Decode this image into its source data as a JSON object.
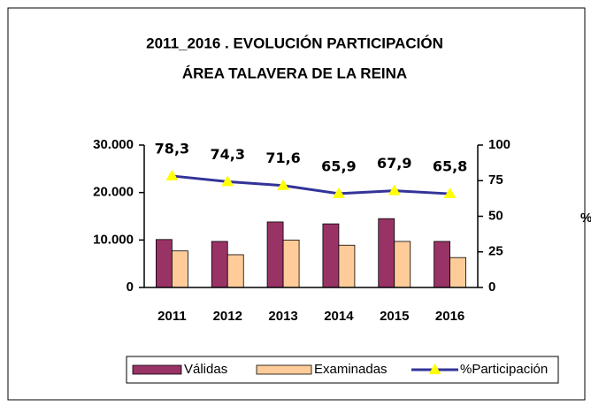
{
  "chart_data": {
    "type": "bar",
    "title": [
      "2011_2016 . EVOLUCIÓN PARTICIPACIÓN",
      "ÁREA TALAVERA DE LA REINA"
    ],
    "categories": [
      "2011",
      "2012",
      "2013",
      "2014",
      "2015",
      "2016"
    ],
    "series": [
      {
        "name": "Válidas",
        "color": "#993366",
        "values": [
          10100,
          9700,
          13800,
          13400,
          14500,
          9700
        ]
      },
      {
        "name": "Examinadas",
        "color": "#FFCC99",
        "values": [
          7700,
          6900,
          10000,
          8900,
          9700,
          6300
        ]
      },
      {
        "name": "%Participación",
        "type": "line",
        "axis": "y2",
        "color": "#333399",
        "marker_color": "#FFFF00",
        "values": [
          78.3,
          74.3,
          71.6,
          65.9,
          67.9,
          65.8
        ],
        "value_labels": [
          "78,3",
          "74,3",
          "71,6",
          "65,9",
          "67,9",
          "65,8"
        ]
      }
    ],
    "ylim": [
      0,
      30000
    ],
    "yticks": [
      0,
      {
        "value": 10000,
        "label": "10.000"
      },
      {
        "value": 20000,
        "label": "20.000"
      },
      {
        "value": 30000,
        "label": "30.000"
      }
    ],
    "y2lim": [
      0,
      100
    ],
    "y2ticks": [
      0,
      25,
      50,
      75,
      100
    ],
    "y2label": "%",
    "legend": "bottom"
  }
}
